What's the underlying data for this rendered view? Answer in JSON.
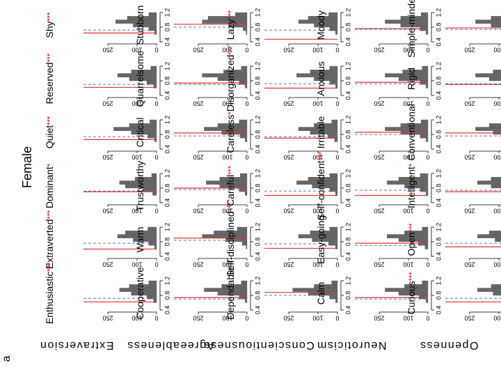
{
  "group_label": "Female",
  "panel_label": "a",
  "bins": [
    0.6,
    0.7,
    0.8,
    0.9,
    1.0,
    1.1,
    1.2
  ],
  "xlim": [
    0,
    300
  ],
  "ylim": [
    0.4,
    1.2
  ],
  "xticks": [
    0,
    100,
    250
  ],
  "yticks": [
    0.4,
    0.8,
    1.2
  ],
  "dimensions": [
    {
      "name": "Extraversion",
      "traits": [
        {
          "name": "Shy",
          "stars": "***",
          "counts": [
            10,
            40,
            120,
            210,
            150,
            40
          ],
          "red": 0.64,
          "blue": 0.72
        },
        {
          "name": "Reserved",
          "stars": "***",
          "counts": [
            15,
            50,
            140,
            200,
            130,
            30
          ],
          "red": 0.62,
          "blue": 0.7
        },
        {
          "name": "Quiet",
          "stars": "***",
          "counts": [
            10,
            45,
            130,
            220,
            140,
            35
          ],
          "red": 0.66,
          "blue": 0.74
        },
        {
          "name": "Dominant",
          "stars": "*",
          "counts": [
            20,
            70,
            160,
            190,
            110,
            25
          ],
          "red": 0.7,
          "blue": 0.72
        },
        {
          "name": "Extraverted",
          "stars": "***",
          "counts": [
            10,
            40,
            120,
            200,
            160,
            45
          ],
          "red": 0.6,
          "blue": 0.76
        },
        {
          "name": "Enthusiastic",
          "stars": "***",
          "counts": [
            15,
            50,
            130,
            190,
            140,
            40
          ],
          "red": 0.62,
          "blue": 0.72
        }
      ]
    },
    {
      "name": "Agreeableness",
      "traits": [
        {
          "name": "Stubborn",
          "stars": "",
          "counts": [
            5,
            20,
            90,
            230,
            200,
            60
          ],
          "red": 0.88,
          "blue": 0.8
        },
        {
          "name": "Quarrelsome",
          "stars": "",
          "counts": [
            10,
            40,
            150,
            230,
            120,
            30
          ],
          "red": 0.74,
          "blue": 0.7
        },
        {
          "name": "Critical",
          "stars": "",
          "counts": [
            10,
            35,
            130,
            220,
            150,
            40
          ],
          "red": 0.84,
          "blue": 0.76
        },
        {
          "name": "Trustworthy",
          "stars": "",
          "counts": [
            10,
            40,
            140,
            210,
            140,
            35
          ],
          "red": 0.8,
          "blue": 0.76
        },
        {
          "name": "Warm",
          "stars": "",
          "counts": [
            5,
            25,
            110,
            230,
            170,
            50
          ],
          "red": 0.9,
          "blue": 0.84
        },
        {
          "name": "Cooperative",
          "stars": "",
          "counts": [
            10,
            40,
            150,
            220,
            130,
            30
          ],
          "red": 0.74,
          "blue": 0.7
        }
      ]
    },
    {
      "name": "Conscientiousness",
      "traits": [
        {
          "name": "Lazy",
          "stars": "***",
          "counts": [
            10,
            40,
            120,
            200,
            150,
            45
          ],
          "red": 0.47,
          "blue": 0.72
        },
        {
          "name": "Disorganized",
          "stars": "***",
          "counts": [
            10,
            40,
            120,
            210,
            140,
            40
          ],
          "red": 0.6,
          "blue": 0.72
        },
        {
          "name": "Careless",
          "stars": "*",
          "counts": [
            15,
            50,
            140,
            200,
            120,
            30
          ],
          "red": 0.7,
          "blue": 0.74
        },
        {
          "name": "Careful",
          "stars": "***",
          "counts": [
            10,
            40,
            130,
            210,
            150,
            40
          ],
          "red": 0.6,
          "blue": 0.72
        },
        {
          "name": "Self-disciplined",
          "stars": "***",
          "counts": [
            10,
            45,
            130,
            200,
            140,
            40
          ],
          "red": 0.62,
          "blue": 0.74
        },
        {
          "name": "Dependable",
          "stars": "",
          "counts": [
            10,
            40,
            150,
            230,
            120,
            30
          ],
          "red": 0.88,
          "blue": 0.8
        }
      ]
    },
    {
      "name": "Neuroticism",
      "traits": [
        {
          "name": "Moody",
          "stars": "",
          "counts": [
            10,
            40,
            140,
            220,
            140,
            35
          ],
          "red": 0.76,
          "blue": 0.74
        },
        {
          "name": "Anxious",
          "stars": "",
          "counts": [
            10,
            40,
            150,
            220,
            130,
            30
          ],
          "red": 0.76,
          "blue": 0.72
        },
        {
          "name": "Irritable",
          "stars": "",
          "counts": [
            10,
            40,
            140,
            220,
            140,
            35
          ],
          "red": 0.86,
          "blue": 0.8
        },
        {
          "name": "Self-confident",
          "stars": "***",
          "counts": [
            10,
            40,
            120,
            210,
            150,
            40
          ],
          "red": 0.6,
          "blue": 0.74
        },
        {
          "name": "Easy-going",
          "stars": "",
          "counts": [
            15,
            50,
            150,
            210,
            120,
            30
          ],
          "red": 0.76,
          "blue": 0.7
        },
        {
          "name": "Calm",
          "stars": "",
          "counts": [
            10,
            45,
            150,
            220,
            120,
            30
          ],
          "red": 0.74,
          "blue": 0.7
        }
      ]
    },
    {
      "name": "Openness",
      "traits": [
        {
          "name": "Simple-minded",
          "stars": "",
          "counts": [
            10,
            40,
            140,
            220,
            140,
            35
          ],
          "red": 0.78,
          "blue": 0.74
        },
        {
          "name": "Rigid",
          "stars": "",
          "counts": [
            10,
            40,
            150,
            220,
            130,
            30
          ],
          "red": 0.7,
          "blue": 0.72
        },
        {
          "name": "Conventional",
          "stars": "",
          "counts": [
            10,
            35,
            130,
            220,
            150,
            40
          ],
          "red": 0.84,
          "blue": 0.76
        },
        {
          "name": "Intelligent",
          "stars": "*",
          "counts": [
            10,
            40,
            140,
            210,
            140,
            35
          ],
          "red": 0.7,
          "blue": 0.74
        },
        {
          "name": "Open",
          "stars": "***",
          "counts": [
            10,
            40,
            120,
            210,
            150,
            40
          ],
          "red": 0.66,
          "blue": 0.76
        },
        {
          "name": "Curious",
          "stars": "***",
          "counts": [
            10,
            40,
            130,
            210,
            140,
            40
          ],
          "red": 0.62,
          "blue": 0.72
        }
      ]
    }
  ]
}
